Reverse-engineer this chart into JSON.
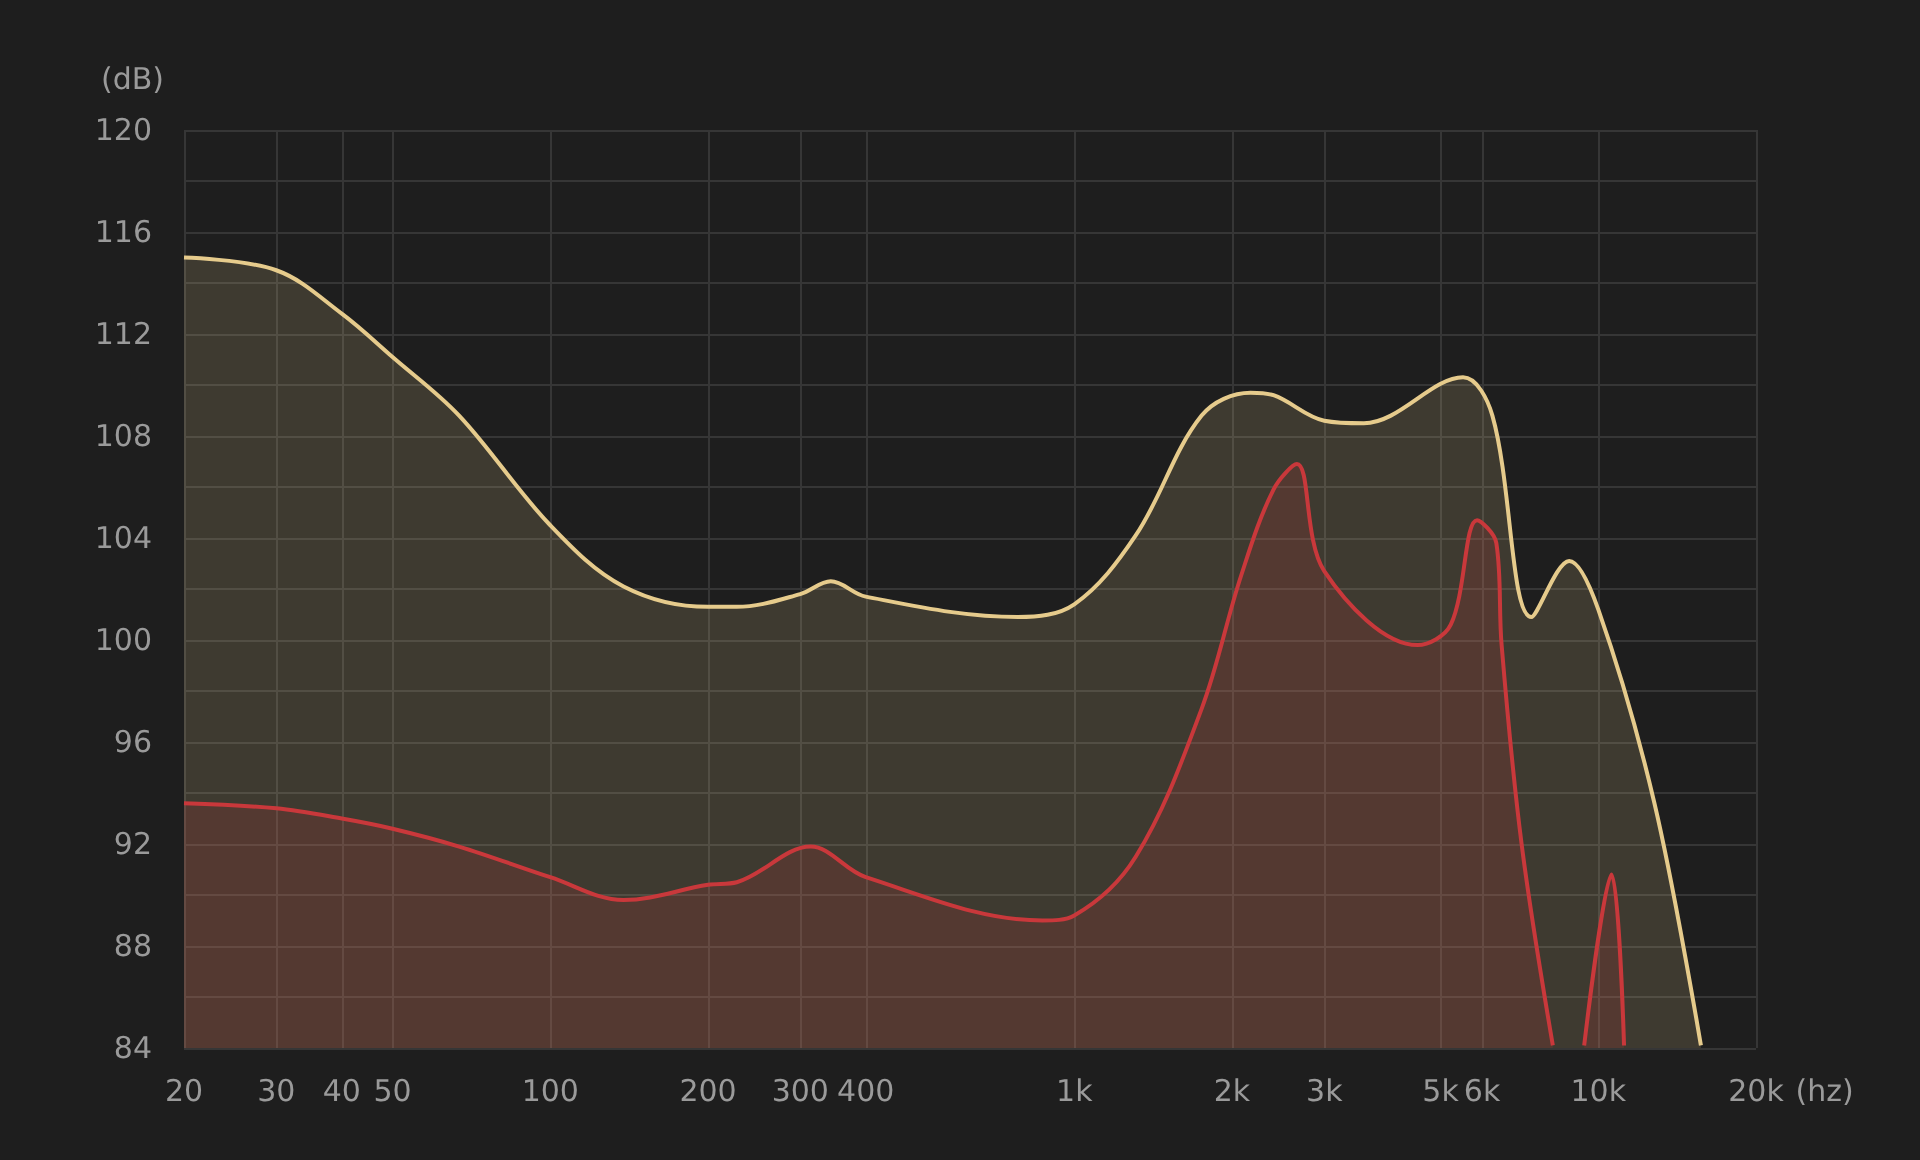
{
  "chart_data": {
    "type": "area",
    "xlabel": "(hz)",
    "ylabel": "(dB)",
    "log": "x",
    "grid": true,
    "marker": "none",
    "xlim": [
      20,
      20000
    ],
    "ylim": [
      84,
      120
    ],
    "xticks": [
      20,
      30,
      40,
      50,
      100,
      200,
      300,
      400,
      {
        "value": 1000,
        "label": "1k"
      },
      {
        "value": 2000,
        "label": "2k"
      },
      {
        "value": 3000,
        "label": "3k"
      },
      {
        "value": 5000,
        "label": "5k"
      },
      {
        "value": 6000,
        "label": "6k"
      },
      {
        "value": 10000,
        "label": "10k"
      },
      {
        "value": 20000,
        "label": "20k"
      }
    ],
    "yticks": [
      84,
      {
        "value": 86,
        "label": null
      },
      88,
      {
        "value": 90,
        "label": null
      },
      92,
      {
        "value": 94,
        "label": null
      },
      96,
      {
        "value": 98,
        "label": null
      },
      100,
      {
        "value": 102,
        "label": null
      },
      104,
      {
        "value": 106,
        "label": null
      },
      108,
      {
        "value": 110,
        "label": null
      },
      112,
      {
        "value": 114,
        "label": null
      },
      116,
      {
        "value": 118,
        "label": null
      },
      120
    ],
    "series": [
      {
        "color": "#e6cb8c",
        "x": [
          20,
          30,
          40,
          50,
          67,
          100,
          138,
          200,
          227,
          300,
          343,
          400,
          780,
          1000,
          1310,
          1750,
          2170,
          2400,
          3000,
          3570,
          5520,
          6280,
          7450,
          8800,
          10000,
          12800,
          15700
        ],
        "values": [
          115,
          114.5,
          112.8,
          111.1,
          108.8,
          104.5,
          102.1,
          101.3,
          101.3,
          101.8,
          102.3,
          101.7,
          100.9,
          101.4,
          104.1,
          108.8,
          109.7,
          109.6,
          108.6,
          108.5,
          110.3,
          108.8,
          100.9,
          103.1,
          101.2,
          93.6,
          84.1
        ]
      },
      {
        "color": "#c9383b",
        "x": [
          20,
          30,
          40,
          50,
          67,
          100,
          138,
          200,
          227,
          314,
          400,
          870,
          1000,
          1310,
          1750,
          2080,
          2400,
          2660,
          3000,
          4520,
          5230,
          5870,
          6390,
          6540,
          7140,
          8190,
          8800,
          9400,
          10600,
          11200
        ],
        "values": [
          93.6,
          93.4,
          93,
          92.6,
          91.9,
          90.7,
          89.8,
          90.4,
          90.5,
          91.9,
          90.7,
          89,
          89.2,
          91.5,
          97.3,
          102.5,
          105.9,
          106.9,
          102.7,
          99.8,
          100.6,
          104.7,
          103.8,
          99.8,
          92,
          84.1,
          null,
          84.1,
          90.8,
          84.1
        ]
      }
    ]
  }
}
